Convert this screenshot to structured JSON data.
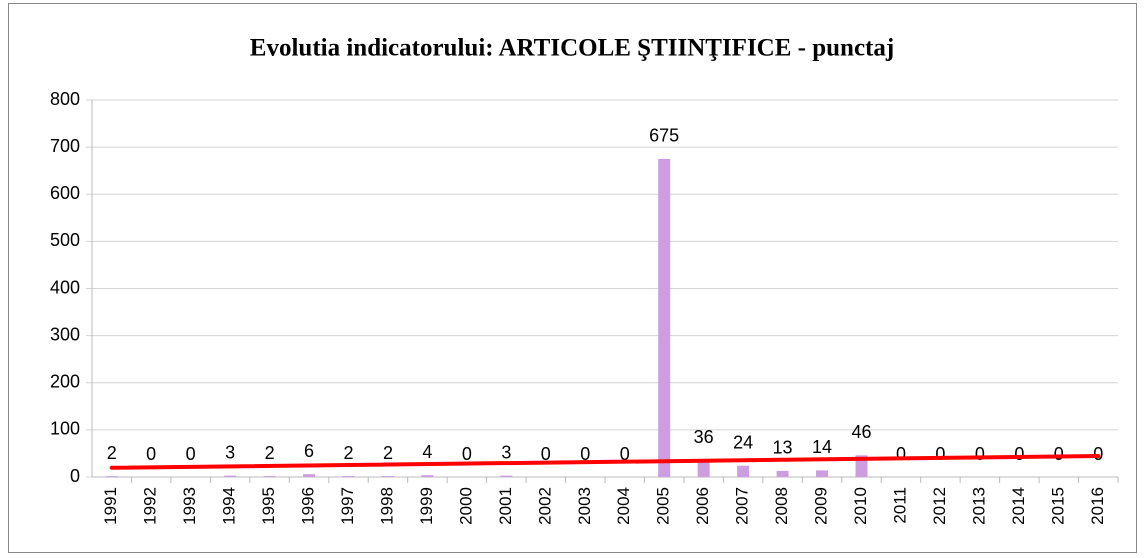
{
  "chart_data": {
    "type": "bar",
    "title": "Evolutia indicatorului: ARTICOLE ŞTIINŢIFICE - punctaj",
    "categories": [
      "1991",
      "1992",
      "1993",
      "1994",
      "1995",
      "1996",
      "1997",
      "1998",
      "1999",
      "2000",
      "2001",
      "2002",
      "2003",
      "2004",
      "2005",
      "2006",
      "2007",
      "2008",
      "2009",
      "2010",
      "2011",
      "2012",
      "2013",
      "2014",
      "2015",
      "2016"
    ],
    "values": [
      2,
      0,
      0,
      3,
      2,
      6,
      2,
      2,
      4,
      0,
      3,
      0,
      0,
      0,
      675,
      36,
      24,
      13,
      14,
      46,
      0,
      0,
      0,
      0,
      0,
      0
    ],
    "color": "#cc9ee0",
    "trendline": {
      "type": "linear",
      "color": "#ff0000"
    },
    "ylim": [
      0,
      800
    ],
    "yticks": [
      0,
      100,
      200,
      300,
      400,
      500,
      600,
      700,
      800
    ],
    "grid": true
  }
}
